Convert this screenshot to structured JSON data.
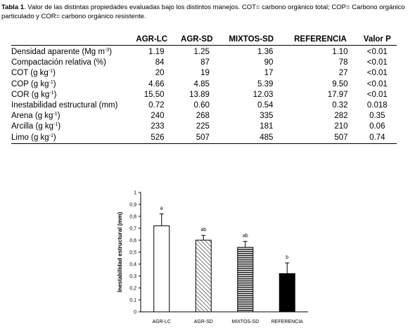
{
  "caption": {
    "label": "Tabla 1",
    "text": ". Valor de las distintas propiedades evaluadas bajo los distintos manejos. COT= carbono orgánico total; COP= Carbono orgánico particulado y COR= carbono orgánico resistente."
  },
  "table": {
    "headers": [
      "AGR-LC",
      "AGR-SD",
      "MIXTOS-SD",
      "REFERENCIA",
      "Valor P"
    ],
    "rows": [
      {
        "label": "Densidad aparente (Mg m",
        "sup": "-3",
        "tail": ")",
        "values": [
          "1.19",
          "1.25",
          "1.36",
          "1.10"
        ],
        "p": "<0.01"
      },
      {
        "label": "Compactación relativa (%)",
        "sup": "",
        "tail": "",
        "values": [
          "84",
          "87",
          "90",
          "78"
        ],
        "p": "<0.01"
      },
      {
        "label": "COT (g kg",
        "sup": "-1",
        "tail": ")",
        "values": [
          "20",
          "19",
          "17",
          "27"
        ],
        "p": "<0.01"
      },
      {
        "label": "COP (g kg",
        "sup": "-1",
        "tail": ")",
        "values": [
          "4.66",
          "4.85",
          "5.39",
          "9.50"
        ],
        "p": "<0.01"
      },
      {
        "label": "COR (g kg",
        "sup": "-1",
        "tail": ")",
        "values": [
          "15.50",
          "13.89",
          "12.03",
          "17.97"
        ],
        "p": "<0.01"
      },
      {
        "label": "Inestabilidad estructural (mm)",
        "sup": "",
        "tail": "",
        "values": [
          "0.72",
          "0.60",
          "0.54",
          "0.32"
        ],
        "p": "0.018"
      },
      {
        "label": "Arena (g kg",
        "sup": "-1",
        "tail": ")",
        "values": [
          "240",
          "268",
          "335",
          "282"
        ],
        "p": "0.35"
      },
      {
        "label": "Arcilla (g kg",
        "sup": "-1",
        "tail": ")",
        "values": [
          "233",
          "225",
          "181",
          "210"
        ],
        "p": "0.06"
      },
      {
        "label": "Limo (g kg",
        "sup": "-1",
        "tail": ")",
        "values": [
          "526",
          "507",
          "485",
          "507"
        ],
        "p": "0.74"
      }
    ]
  },
  "chart_data": {
    "type": "bar",
    "ylabel": "Inestabilidad estructural (mm)",
    "ylim": [
      0,
      1
    ],
    "yticks": [
      "0",
      "0,1",
      "0,2",
      "0,3",
      "0,4",
      "0,5",
      "0,6",
      "0,7",
      "0,8",
      "0,9",
      "1"
    ],
    "categories": [
      "AGR-LC",
      "AGR-SD",
      "MIXTOS-SD",
      "REFERENCIA"
    ],
    "values": [
      0.72,
      0.6,
      0.54,
      0.32
    ],
    "error_upper": [
      0.82,
      0.64,
      0.59,
      0.41
    ],
    "letters": [
      "a",
      "ab",
      "ab",
      "b"
    ],
    "fills": [
      "white",
      "diagonal-hatch",
      "horizontal-hatch",
      "black"
    ]
  }
}
